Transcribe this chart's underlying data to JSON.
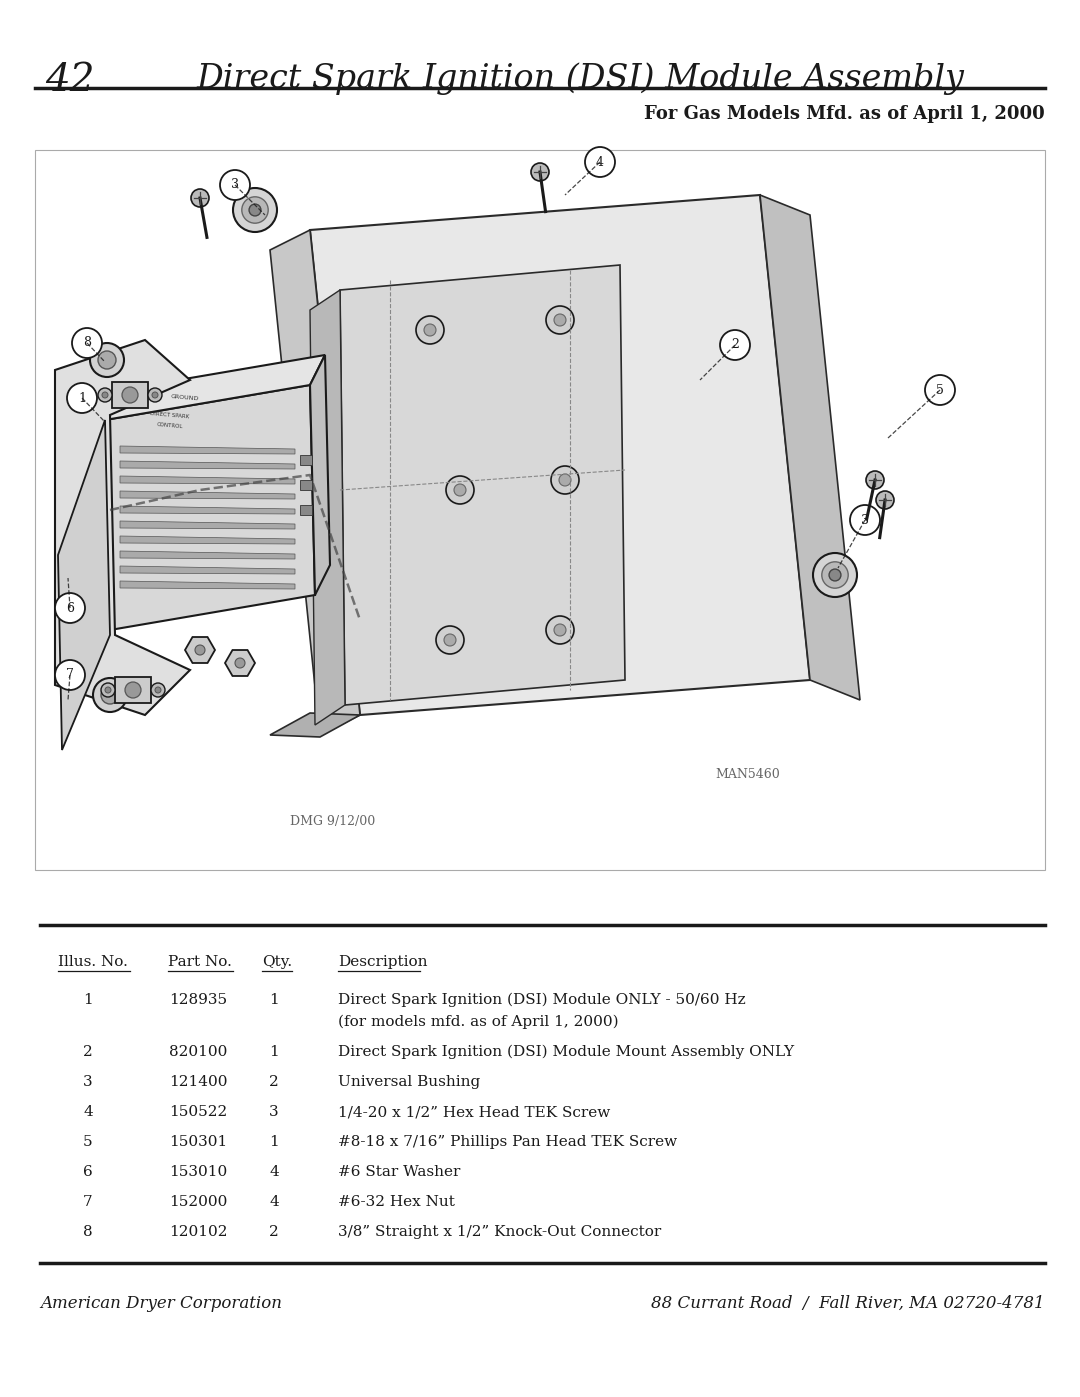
{
  "page_number": "42",
  "title": "Direct Spark Ignition (DSI) Module Assembly",
  "subtitle": "For Gas Models Mfd. as of April 1, 2000",
  "footer_left": "American Dryer Corporation",
  "footer_right": "88 Currant Road  /  Fall River, MA 02720-4781",
  "diagram_note": "MAN5460",
  "diagram_date": "DMG 9/12/00",
  "table_headers": [
    "Illus. No.",
    "Part No.",
    "Qty.",
    "Description"
  ],
  "table_rows": [
    [
      "1",
      "128935",
      "1",
      "Direct Spark Ignition (DSI) Module ONLY - 50/60 Hz\n(for models mfd. as of April 1, 2000)"
    ],
    [
      "2",
      "820100",
      "1",
      "Direct Spark Ignition (DSI) Module Mount Assembly ONLY"
    ],
    [
      "3",
      "121400",
      "2",
      "Universal Bushing"
    ],
    [
      "4",
      "150522",
      "3",
      "1/4-20 x 1/2” Hex Head TEK Screw"
    ],
    [
      "5",
      "150301",
      "1",
      "#8-18 x 7/16” Phillips Pan Head TEK Screw"
    ],
    [
      "6",
      "153010",
      "4",
      "#6 Star Washer"
    ],
    [
      "7",
      "152000",
      "4",
      "#6-32 Hex Nut"
    ],
    [
      "8",
      "120102",
      "2",
      "3/8” Straight x 1/2” Knock-Out Connector"
    ]
  ],
  "bg_color": "#ffffff",
  "text_color": "#1a1a1a",
  "line_color": "#1a1a1a"
}
